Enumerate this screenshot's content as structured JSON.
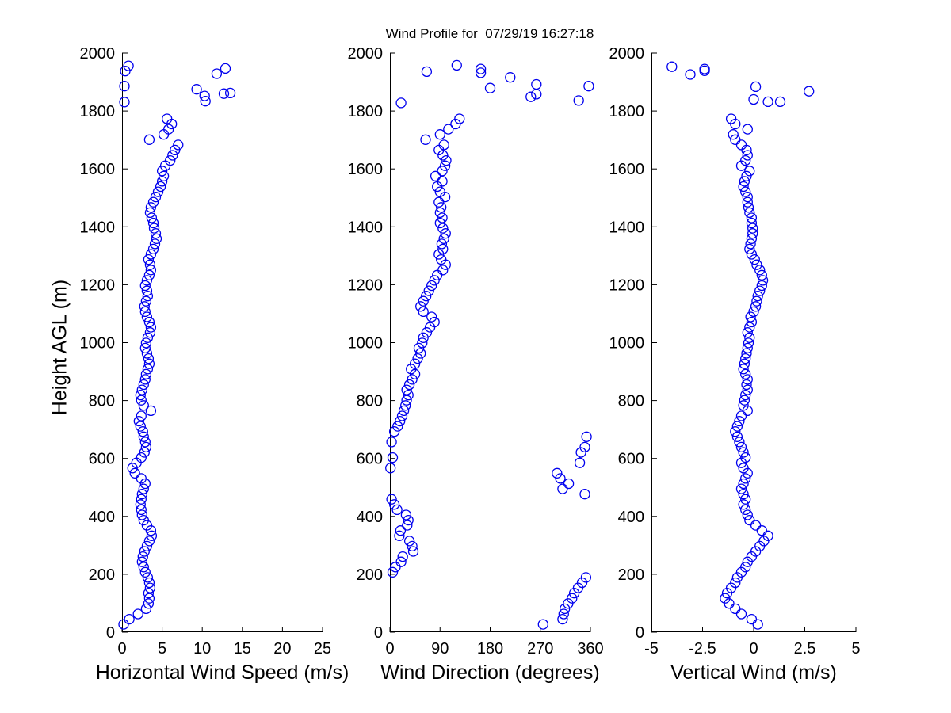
{
  "title": "Wind Profile for  07/29/19 16:27:18",
  "marker": "open-circle",
  "marker_color": "#0000EE",
  "axis_color": "#000000",
  "background_color": "#FFFFFF",
  "chart_data": [
    {
      "type": "scatter",
      "xlabel": "Horizontal Wind Speed (m/s)",
      "ylabel": "Height AGL (m)",
      "xlim": [
        0,
        25
      ],
      "ylim": [
        0,
        2000
      ],
      "xticks": [
        0,
        5,
        10,
        15,
        20,
        25
      ],
      "yticks": [
        0,
        200,
        400,
        600,
        800,
        1000,
        1200,
        1400,
        1600,
        1800,
        2000
      ],
      "grid": false,
      "legend": null,
      "points": [
        [
          0.2,
          27
        ],
        [
          0.9,
          45
        ],
        [
          2.0,
          63
        ],
        [
          3.0,
          81
        ],
        [
          3.3,
          99
        ],
        [
          3.4,
          117
        ],
        [
          3.3,
          135
        ],
        [
          3.5,
          153
        ],
        [
          3.4,
          171
        ],
        [
          3.2,
          189
        ],
        [
          2.9,
          207
        ],
        [
          2.7,
          225
        ],
        [
          2.5,
          243
        ],
        [
          2.6,
          261
        ],
        [
          2.8,
          279
        ],
        [
          3.1,
          297
        ],
        [
          3.4,
          315
        ],
        [
          3.7,
          333
        ],
        [
          3.6,
          351
        ],
        [
          3.1,
          369
        ],
        [
          2.7,
          387
        ],
        [
          2.5,
          405
        ],
        [
          2.4,
          423
        ],
        [
          2.3,
          441
        ],
        [
          2.4,
          459
        ],
        [
          2.5,
          477
        ],
        [
          2.7,
          495
        ],
        [
          2.9,
          513
        ],
        [
          2.4,
          531
        ],
        [
          1.6,
          549
        ],
        [
          1.3,
          567
        ],
        [
          1.8,
          585
        ],
        [
          2.4,
          603
        ],
        [
          2.8,
          621
        ],
        [
          3.0,
          639
        ],
        [
          2.9,
          657
        ],
        [
          2.7,
          675
        ],
        [
          2.6,
          693
        ],
        [
          2.3,
          711
        ],
        [
          2.1,
          729
        ],
        [
          2.4,
          747
        ],
        [
          3.6,
          765
        ],
        [
          2.7,
          783
        ],
        [
          2.4,
          801
        ],
        [
          2.3,
          819
        ],
        [
          2.5,
          837
        ],
        [
          2.7,
          855
        ],
        [
          2.9,
          873
        ],
        [
          3.0,
          891
        ],
        [
          3.2,
          909
        ],
        [
          3.4,
          927
        ],
        [
          3.3,
          945
        ],
        [
          3.1,
          963
        ],
        [
          2.9,
          981
        ],
        [
          3.0,
          999
        ],
        [
          3.2,
          1017
        ],
        [
          3.5,
          1035
        ],
        [
          3.6,
          1053
        ],
        [
          3.4,
          1071
        ],
        [
          3.1,
          1089
        ],
        [
          2.9,
          1107
        ],
        [
          2.8,
          1125
        ],
        [
          3.0,
          1143
        ],
        [
          3.2,
          1161
        ],
        [
          3.1,
          1179
        ],
        [
          2.9,
          1197
        ],
        [
          3.1,
          1215
        ],
        [
          3.4,
          1233
        ],
        [
          3.6,
          1251
        ],
        [
          3.5,
          1269
        ],
        [
          3.3,
          1287
        ],
        [
          3.6,
          1305
        ],
        [
          3.9,
          1323
        ],
        [
          4.1,
          1341
        ],
        [
          4.3,
          1359
        ],
        [
          4.2,
          1377
        ],
        [
          4.0,
          1395
        ],
        [
          3.9,
          1413
        ],
        [
          3.7,
          1431
        ],
        [
          3.5,
          1449
        ],
        [
          3.6,
          1467
        ],
        [
          3.9,
          1485
        ],
        [
          4.2,
          1503
        ],
        [
          4.5,
          1521
        ],
        [
          4.8,
          1539
        ],
        [
          5.0,
          1557
        ],
        [
          5.2,
          1575
        ],
        [
          5.0,
          1593
        ],
        [
          5.4,
          1611
        ],
        [
          6.0,
          1629
        ],
        [
          6.3,
          1647
        ],
        [
          6.6,
          1665
        ],
        [
          7.0,
          1683
        ],
        [
          3.4,
          1701
        ],
        [
          5.2,
          1719
        ],
        [
          5.8,
          1737
        ],
        [
          6.2,
          1755
        ],
        [
          5.6,
          1773
        ],
        [
          0.3,
          1831
        ],
        [
          10.4,
          1834
        ],
        [
          10.3,
          1852
        ],
        [
          12.7,
          1860
        ],
        [
          13.5,
          1862
        ],
        [
          9.3,
          1875
        ],
        [
          0.3,
          1886
        ],
        [
          11.8,
          1929
        ],
        [
          0.4,
          1938
        ],
        [
          12.9,
          1947
        ],
        [
          0.8,
          1956
        ]
      ]
    },
    {
      "type": "scatter",
      "xlabel": "Wind Direction (degrees)",
      "ylabel": "Height AGL (m)",
      "xlim": [
        0,
        360
      ],
      "ylim": [
        0,
        2000
      ],
      "xticks": [
        0,
        90,
        180,
        270,
        360
      ],
      "yticks": [
        0,
        200,
        400,
        600,
        800,
        1000,
        1200,
        1400,
        1600,
        1800,
        2000
      ],
      "grid": false,
      "legend": null,
      "points": [
        [
          275,
          27
        ],
        [
          310,
          45
        ],
        [
          312,
          63
        ],
        [
          314,
          81
        ],
        [
          320,
          99
        ],
        [
          327,
          117
        ],
        [
          331,
          135
        ],
        [
          338,
          153
        ],
        [
          345,
          171
        ],
        [
          352,
          189
        ],
        [
          5,
          207
        ],
        [
          10,
          225
        ],
        [
          20,
          243
        ],
        [
          23,
          261
        ],
        [
          42,
          279
        ],
        [
          40,
          297
        ],
        [
          35,
          315
        ],
        [
          17,
          333
        ],
        [
          19,
          351
        ],
        [
          31,
          369
        ],
        [
          33,
          387
        ],
        [
          29,
          405
        ],
        [
          13,
          423
        ],
        [
          8,
          441
        ],
        [
          3,
          459
        ],
        [
          350,
          477
        ],
        [
          310,
          495
        ],
        [
          321,
          513
        ],
        [
          306,
          531
        ],
        [
          300,
          549
        ],
        [
          1,
          567
        ],
        [
          341,
          585
        ],
        [
          5,
          603
        ],
        [
          343,
          621
        ],
        [
          350,
          639
        ],
        [
          3,
          657
        ],
        [
          353,
          675
        ],
        [
          8,
          693
        ],
        [
          14,
          711
        ],
        [
          18,
          729
        ],
        [
          22,
          747
        ],
        [
          25,
          765
        ],
        [
          28,
          783
        ],
        [
          30,
          801
        ],
        [
          33,
          819
        ],
        [
          30,
          837
        ],
        [
          35,
          855
        ],
        [
          40,
          873
        ],
        [
          45,
          891
        ],
        [
          38,
          909
        ],
        [
          45,
          927
        ],
        [
          50,
          945
        ],
        [
          55,
          963
        ],
        [
          52,
          981
        ],
        [
          58,
          999
        ],
        [
          60,
          1017
        ],
        [
          66,
          1035
        ],
        [
          72,
          1053
        ],
        [
          80,
          1071
        ],
        [
          75,
          1089
        ],
        [
          60,
          1107
        ],
        [
          55,
          1125
        ],
        [
          60,
          1143
        ],
        [
          65,
          1161
        ],
        [
          70,
          1179
        ],
        [
          75,
          1197
        ],
        [
          80,
          1215
        ],
        [
          85,
          1233
        ],
        [
          95,
          1251
        ],
        [
          100,
          1269
        ],
        [
          92,
          1287
        ],
        [
          88,
          1305
        ],
        [
          95,
          1323
        ],
        [
          93,
          1341
        ],
        [
          97,
          1359
        ],
        [
          100,
          1377
        ],
        [
          95,
          1395
        ],
        [
          90,
          1413
        ],
        [
          94,
          1431
        ],
        [
          90,
          1449
        ],
        [
          92,
          1467
        ],
        [
          88,
          1485
        ],
        [
          99,
          1503
        ],
        [
          90,
          1521
        ],
        [
          85,
          1539
        ],
        [
          94,
          1557
        ],
        [
          82,
          1575
        ],
        [
          94,
          1593
        ],
        [
          99,
          1611
        ],
        [
          101,
          1629
        ],
        [
          95,
          1647
        ],
        [
          88,
          1665
        ],
        [
          97,
          1683
        ],
        [
          64,
          1701
        ],
        [
          90,
          1719
        ],
        [
          105,
          1737
        ],
        [
          118,
          1755
        ],
        [
          125,
          1773
        ],
        [
          20,
          1828
        ],
        [
          339,
          1836
        ],
        [
          253,
          1849
        ],
        [
          263,
          1858
        ],
        [
          180,
          1879
        ],
        [
          357,
          1886
        ],
        [
          263,
          1892
        ],
        [
          216,
          1916
        ],
        [
          163,
          1932
        ],
        [
          66,
          1936
        ],
        [
          163,
          1945
        ],
        [
          120,
          1958
        ]
      ]
    },
    {
      "type": "scatter",
      "xlabel": "Vertical Wind (m/s)",
      "ylabel": "Height AGL (m)",
      "xlim": [
        -5,
        5
      ],
      "ylim": [
        0,
        2000
      ],
      "xticks": [
        -5,
        -2.5,
        0,
        2.5,
        5
      ],
      "yticks": [
        0,
        200,
        400,
        600,
        800,
        1000,
        1200,
        1400,
        1600,
        1800,
        2000
      ],
      "grid": false,
      "legend": null,
      "points": [
        [
          0.2,
          27
        ],
        [
          -0.1,
          45
        ],
        [
          -0.6,
          63
        ],
        [
          -0.9,
          81
        ],
        [
          -1.2,
          99
        ],
        [
          -1.4,
          117
        ],
        [
          -1.3,
          135
        ],
        [
          -1.1,
          153
        ],
        [
          -0.9,
          171
        ],
        [
          -0.8,
          189
        ],
        [
          -0.6,
          207
        ],
        [
          -0.4,
          225
        ],
        [
          -0.3,
          243
        ],
        [
          -0.1,
          261
        ],
        [
          0.1,
          279
        ],
        [
          0.3,
          297
        ],
        [
          0.5,
          315
        ],
        [
          0.7,
          333
        ],
        [
          0.4,
          351
        ],
        [
          0.1,
          369
        ],
        [
          -0.2,
          387
        ],
        [
          -0.3,
          405
        ],
        [
          -0.4,
          423
        ],
        [
          -0.5,
          441
        ],
        [
          -0.4,
          459
        ],
        [
          -0.5,
          477
        ],
        [
          -0.6,
          495
        ],
        [
          -0.5,
          513
        ],
        [
          -0.4,
          531
        ],
        [
          -0.3,
          549
        ],
        [
          -0.5,
          567
        ],
        [
          -0.6,
          585
        ],
        [
          -0.4,
          603
        ],
        [
          -0.5,
          621
        ],
        [
          -0.6,
          639
        ],
        [
          -0.7,
          657
        ],
        [
          -0.8,
          675
        ],
        [
          -0.9,
          693
        ],
        [
          -0.8,
          711
        ],
        [
          -0.7,
          729
        ],
        [
          -0.6,
          747
        ],
        [
          -0.3,
          765
        ],
        [
          -0.5,
          783
        ],
        [
          -0.45,
          801
        ],
        [
          -0.4,
          819
        ],
        [
          -0.3,
          837
        ],
        [
          -0.35,
          855
        ],
        [
          -0.3,
          873
        ],
        [
          -0.4,
          891
        ],
        [
          -0.5,
          909
        ],
        [
          -0.45,
          927
        ],
        [
          -0.4,
          945
        ],
        [
          -0.35,
          963
        ],
        [
          -0.3,
          981
        ],
        [
          -0.25,
          999
        ],
        [
          -0.2,
          1017
        ],
        [
          -0.3,
          1035
        ],
        [
          -0.2,
          1053
        ],
        [
          -0.1,
          1071
        ],
        [
          -0.15,
          1089
        ],
        [
          0.0,
          1107
        ],
        [
          0.1,
          1125
        ],
        [
          0.15,
          1143
        ],
        [
          0.2,
          1161
        ],
        [
          0.3,
          1179
        ],
        [
          0.4,
          1197
        ],
        [
          0.45,
          1215
        ],
        [
          0.4,
          1233
        ],
        [
          0.3,
          1251
        ],
        [
          0.15,
          1269
        ],
        [
          0.05,
          1287
        ],
        [
          -0.1,
          1305
        ],
        [
          -0.2,
          1323
        ],
        [
          -0.15,
          1341
        ],
        [
          -0.1,
          1359
        ],
        [
          -0.05,
          1377
        ],
        [
          -0.05,
          1395
        ],
        [
          -0.1,
          1413
        ],
        [
          -0.1,
          1431
        ],
        [
          -0.2,
          1449
        ],
        [
          -0.25,
          1467
        ],
        [
          -0.3,
          1485
        ],
        [
          -0.3,
          1503
        ],
        [
          -0.4,
          1521
        ],
        [
          -0.5,
          1539
        ],
        [
          -0.45,
          1557
        ],
        [
          -0.35,
          1575
        ],
        [
          -0.2,
          1593
        ],
        [
          -0.6,
          1611
        ],
        [
          -0.4,
          1629
        ],
        [
          -0.3,
          1647
        ],
        [
          -0.35,
          1665
        ],
        [
          -0.6,
          1683
        ],
        [
          -0.9,
          1701
        ],
        [
          -1.0,
          1719
        ],
        [
          -0.3,
          1737
        ],
        [
          -0.9,
          1755
        ],
        [
          -1.1,
          1773
        ],
        [
          0.7,
          1832
        ],
        [
          1.3,
          1832
        ],
        [
          0.0,
          1840
        ],
        [
          2.7,
          1868
        ],
        [
          0.1,
          1884
        ],
        [
          -3.1,
          1926
        ],
        [
          -2.4,
          1939
        ],
        [
          -2.4,
          1945
        ],
        [
          -4.0,
          1953
        ]
      ]
    }
  ]
}
